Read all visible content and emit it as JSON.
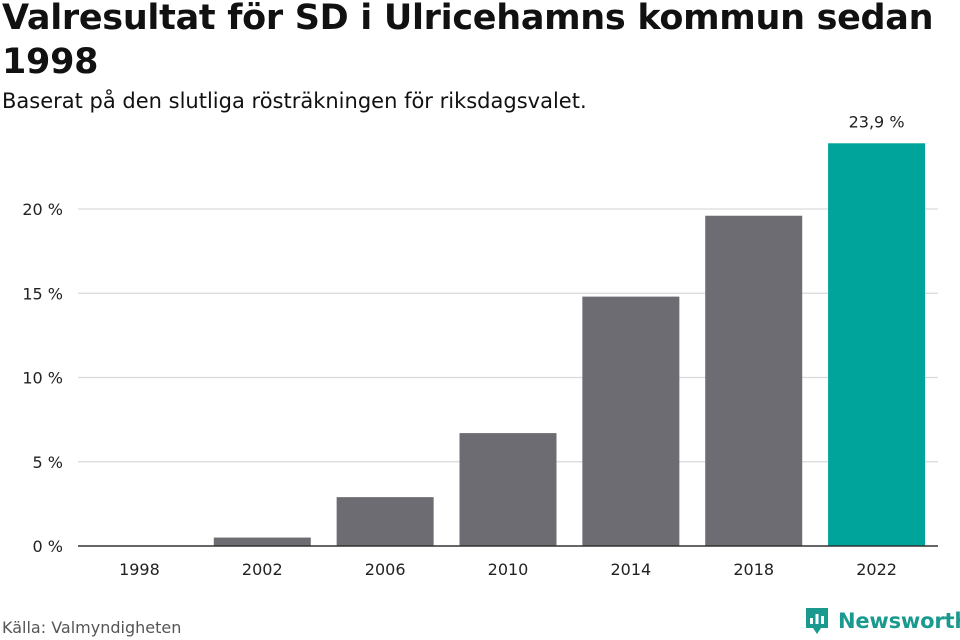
{
  "header": {
    "title": "Valresultat för SD i Ulricehamns kommun sedan 1998",
    "subtitle": "Baserat på den slutliga rösträkningen för riksdagsvalet."
  },
  "footer": {
    "source": "Källa: Valmyndigheten",
    "brand": "Newsworthy",
    "brand_icon": "newsworthy-logo-icon"
  },
  "colors": {
    "bar": "#6d6c72",
    "highlight": "#00a49a",
    "grid": "#d9d9d9",
    "axis": "#333333",
    "brand": "#1a9a8e"
  },
  "chart_data": {
    "type": "bar",
    "categories": [
      "1998",
      "2002",
      "2006",
      "2010",
      "2014",
      "2018",
      "2022"
    ],
    "values": [
      0.0,
      0.5,
      2.9,
      6.7,
      14.8,
      19.6,
      23.9
    ],
    "highlight_index": 6,
    "data_labels": {
      "6": "23,9 %"
    },
    "yticks": [
      0,
      5,
      10,
      15,
      20
    ],
    "ytick_labels": [
      "0 %",
      "5 %",
      "10 %",
      "15 %",
      "20 %"
    ],
    "ylim": [
      0,
      26
    ],
    "grid": true,
    "legend": "none",
    "xlabel": "",
    "ylabel": ""
  }
}
